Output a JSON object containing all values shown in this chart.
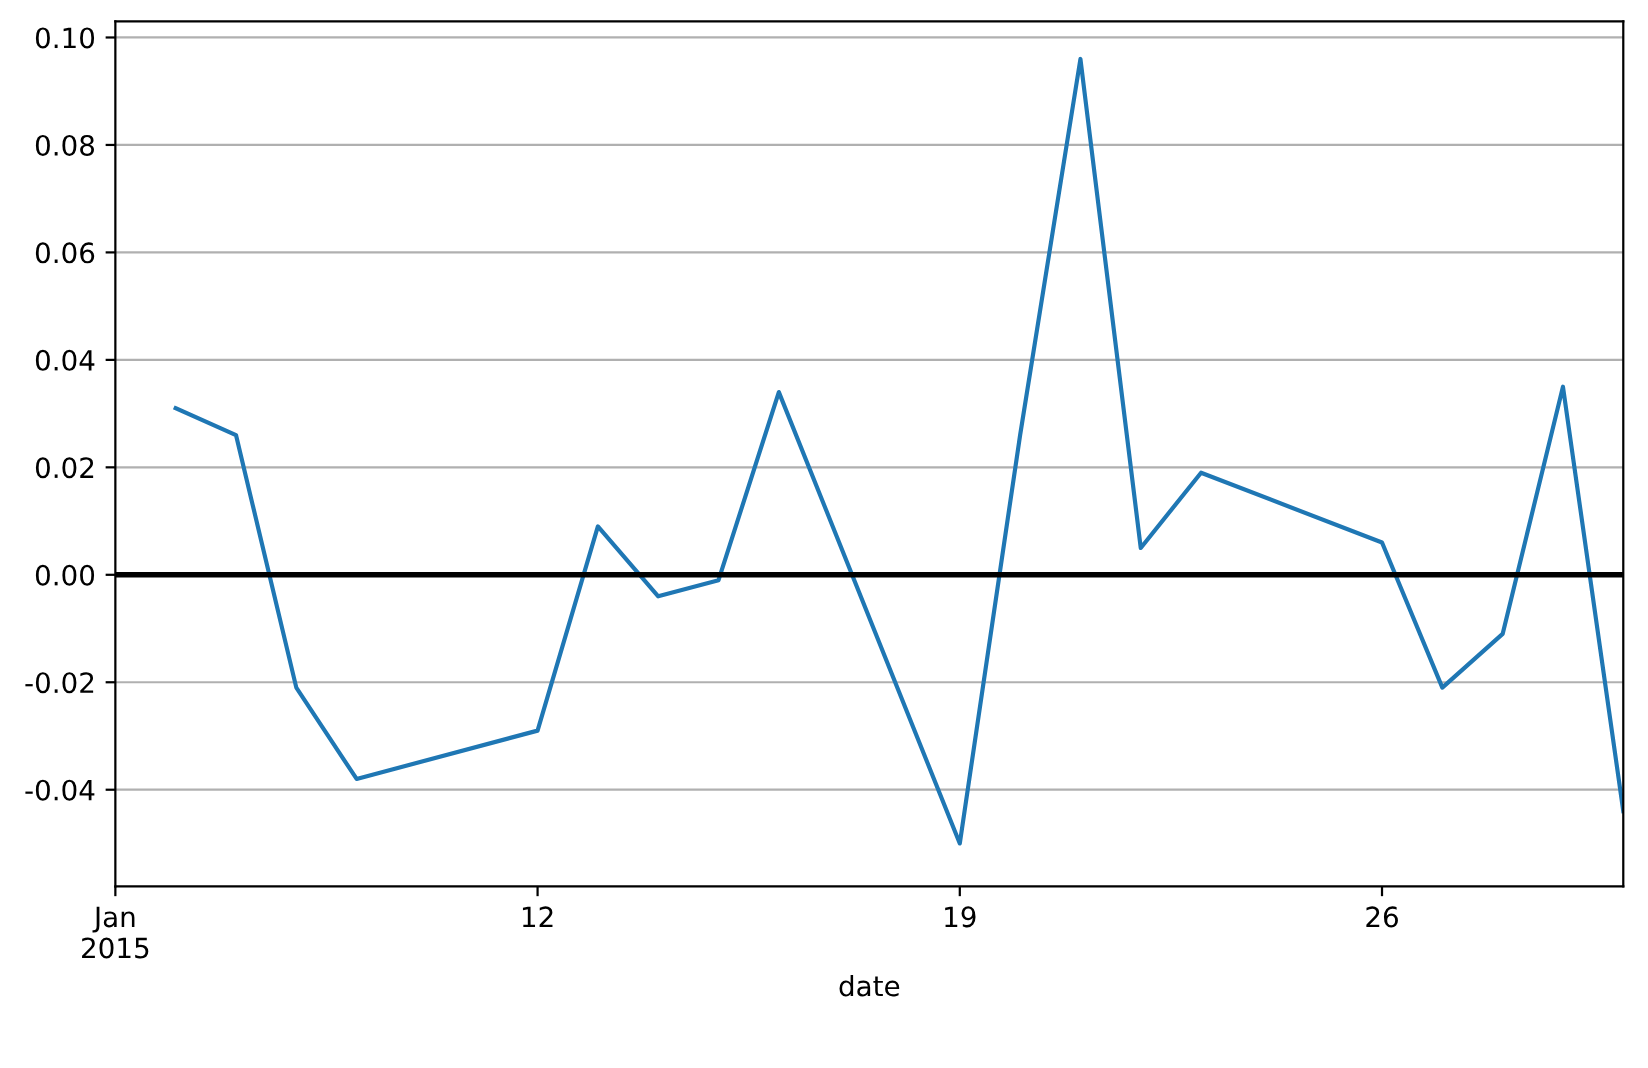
{
  "chart_data": {
    "type": "line",
    "xlabel": "date",
    "x": [
      "2015-01-06",
      "2015-01-07",
      "2015-01-08",
      "2015-01-09",
      "2015-01-12",
      "2015-01-13",
      "2015-01-14",
      "2015-01-15",
      "2015-01-16",
      "2015-01-19",
      "2015-01-20",
      "2015-01-21",
      "2015-01-22",
      "2015-01-23",
      "2015-01-26",
      "2015-01-27",
      "2015-01-28",
      "2015-01-29",
      "2015-01-30"
    ],
    "series": [
      {
        "color": "#1f77b4",
        "values": [
          0.031,
          0.026,
          -0.021,
          -0.038,
          -0.029,
          0.009,
          -0.004,
          -0.001,
          0.034,
          -0.05,
          0.026,
          0.096,
          0.005,
          0.019,
          0.006,
          -0.021,
          -0.011,
          0.035,
          -0.044
        ]
      }
    ],
    "xlim": [
      "2015-01-05",
      "2015-01-30"
    ],
    "xticks": [
      {
        "value": "2015-01-05",
        "label": "Jan\n2015"
      },
      {
        "value": "2015-01-12",
        "label": "12"
      },
      {
        "value": "2015-01-19",
        "label": "19"
      },
      {
        "value": "2015-01-26",
        "label": "26"
      }
    ],
    "ylim": [
      -0.058,
      0.103
    ],
    "yticks": [
      {
        "value": -0.04,
        "label": "-0.04"
      },
      {
        "value": -0.02,
        "label": "-0.02"
      },
      {
        "value": 0,
        "label": "0.00"
      },
      {
        "value": 0.02,
        "label": "0.02"
      },
      {
        "value": 0.04,
        "label": "0.04"
      },
      {
        "value": 0.06,
        "label": "0.06"
      },
      {
        "value": 0.08,
        "label": "0.08"
      },
      {
        "value": 0.1,
        "label": "0.10"
      }
    ],
    "ref_lines": [
      {
        "axis": "y",
        "value": 0,
        "color": "#000000"
      }
    ],
    "grid": "y",
    "legend": false
  }
}
